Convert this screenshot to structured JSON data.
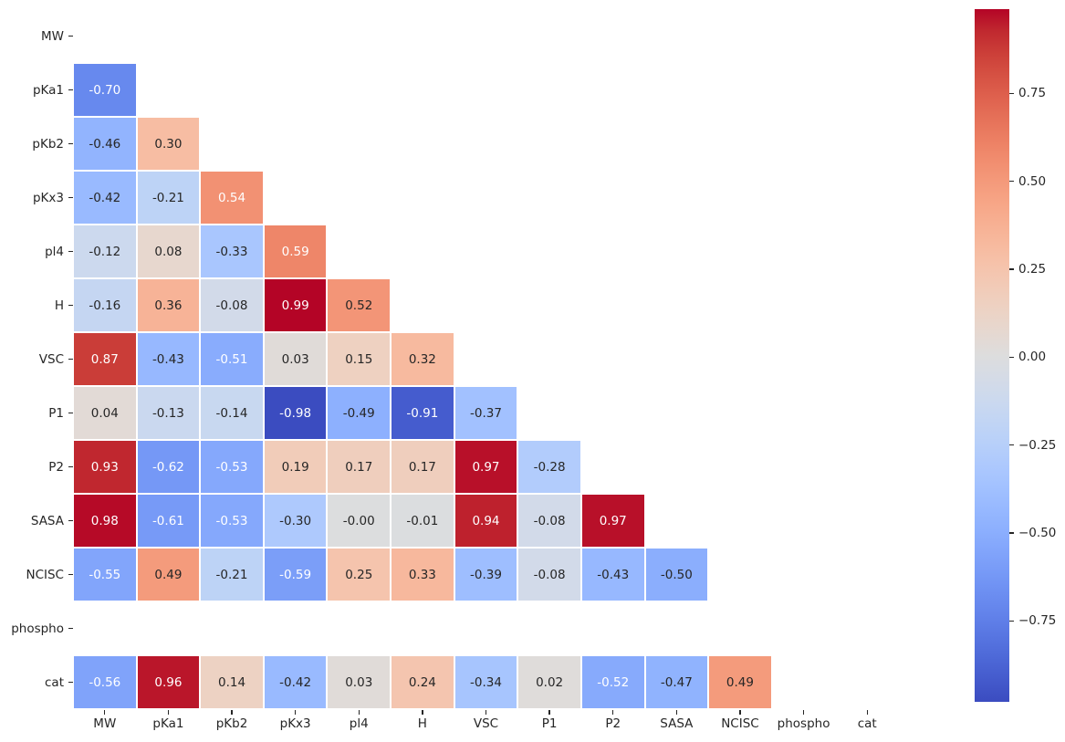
{
  "chart_data": {
    "type": "heatmap",
    "subtype": "correlation-matrix-lower-triangle",
    "title": "",
    "xlabel": "",
    "ylabel": "",
    "variables": [
      "MW",
      "pKa1",
      "pKb2",
      "pKx3",
      "pl4",
      "H",
      "VSC",
      "P1",
      "P2",
      "SASA",
      "NCISC",
      "phospho",
      "cat"
    ],
    "rows": [
      {
        "label": "MW",
        "values": []
      },
      {
        "label": "pKa1",
        "values": [
          "-0.70"
        ]
      },
      {
        "label": "pKb2",
        "values": [
          "-0.46",
          "0.30"
        ]
      },
      {
        "label": "pKx3",
        "values": [
          "-0.42",
          "-0.21",
          "0.54"
        ]
      },
      {
        "label": "pl4",
        "values": [
          "-0.12",
          "0.08",
          "-0.33",
          "0.59"
        ]
      },
      {
        "label": "H",
        "values": [
          "-0.16",
          "0.36",
          "-0.08",
          "0.99",
          "0.52"
        ]
      },
      {
        "label": "VSC",
        "values": [
          "0.87",
          "-0.43",
          "-0.51",
          "0.03",
          "0.15",
          "0.32"
        ]
      },
      {
        "label": "P1",
        "values": [
          "0.04",
          "-0.13",
          "-0.14",
          "-0.98",
          "-0.49",
          "-0.91",
          "-0.37"
        ]
      },
      {
        "label": "P2",
        "values": [
          "0.93",
          "-0.62",
          "-0.53",
          "0.19",
          "0.17",
          "0.17",
          "0.97",
          "-0.28"
        ]
      },
      {
        "label": "SASA",
        "values": [
          "0.98",
          "-0.61",
          "-0.53",
          "-0.30",
          "-0.00",
          "-0.01",
          "0.94",
          "-0.08",
          "0.97"
        ]
      },
      {
        "label": "NCISC",
        "values": [
          "-0.55",
          "0.49",
          "-0.21",
          "-0.59",
          "0.25",
          "0.33",
          "-0.39",
          "-0.08",
          "-0.43",
          "-0.50"
        ]
      },
      {
        "label": "phospho",
        "values": [
          null,
          null,
          null,
          null,
          null,
          null,
          null,
          null,
          null,
          null,
          null
        ]
      },
      {
        "label": "cat",
        "values": [
          "-0.56",
          "0.96",
          "0.14",
          "-0.42",
          "0.03",
          "0.24",
          "-0.34",
          "0.02",
          "-0.52",
          "-0.47",
          "0.49",
          null
        ]
      }
    ],
    "colormap": "coolwarm",
    "vmin": -0.98,
    "vmax": 0.99,
    "annotation_format": ".2f",
    "grid": false,
    "legend_position": "right-colorbar",
    "colorbar": {
      "ticks": [
        {
          "value": 0.75,
          "label": "0.75"
        },
        {
          "value": 0.5,
          "label": "0.50"
        },
        {
          "value": 0.25,
          "label": "0.25"
        },
        {
          "value": 0.0,
          "label": "0.00"
        },
        {
          "value": -0.25,
          "label": "−0.25"
        },
        {
          "value": -0.5,
          "label": "−0.50"
        },
        {
          "value": -0.75,
          "label": "−0.75"
        }
      ]
    },
    "colors": {
      "annotation_dark_text": "#262626",
      "annotation_light_text": "#ffffff",
      "cell_border": "#ffffff",
      "background": "#ffffff",
      "cmap_min_color": "#3b4cc0",
      "cmap_mid_color": "#dddddd",
      "cmap_max_color": "#b40426"
    }
  }
}
